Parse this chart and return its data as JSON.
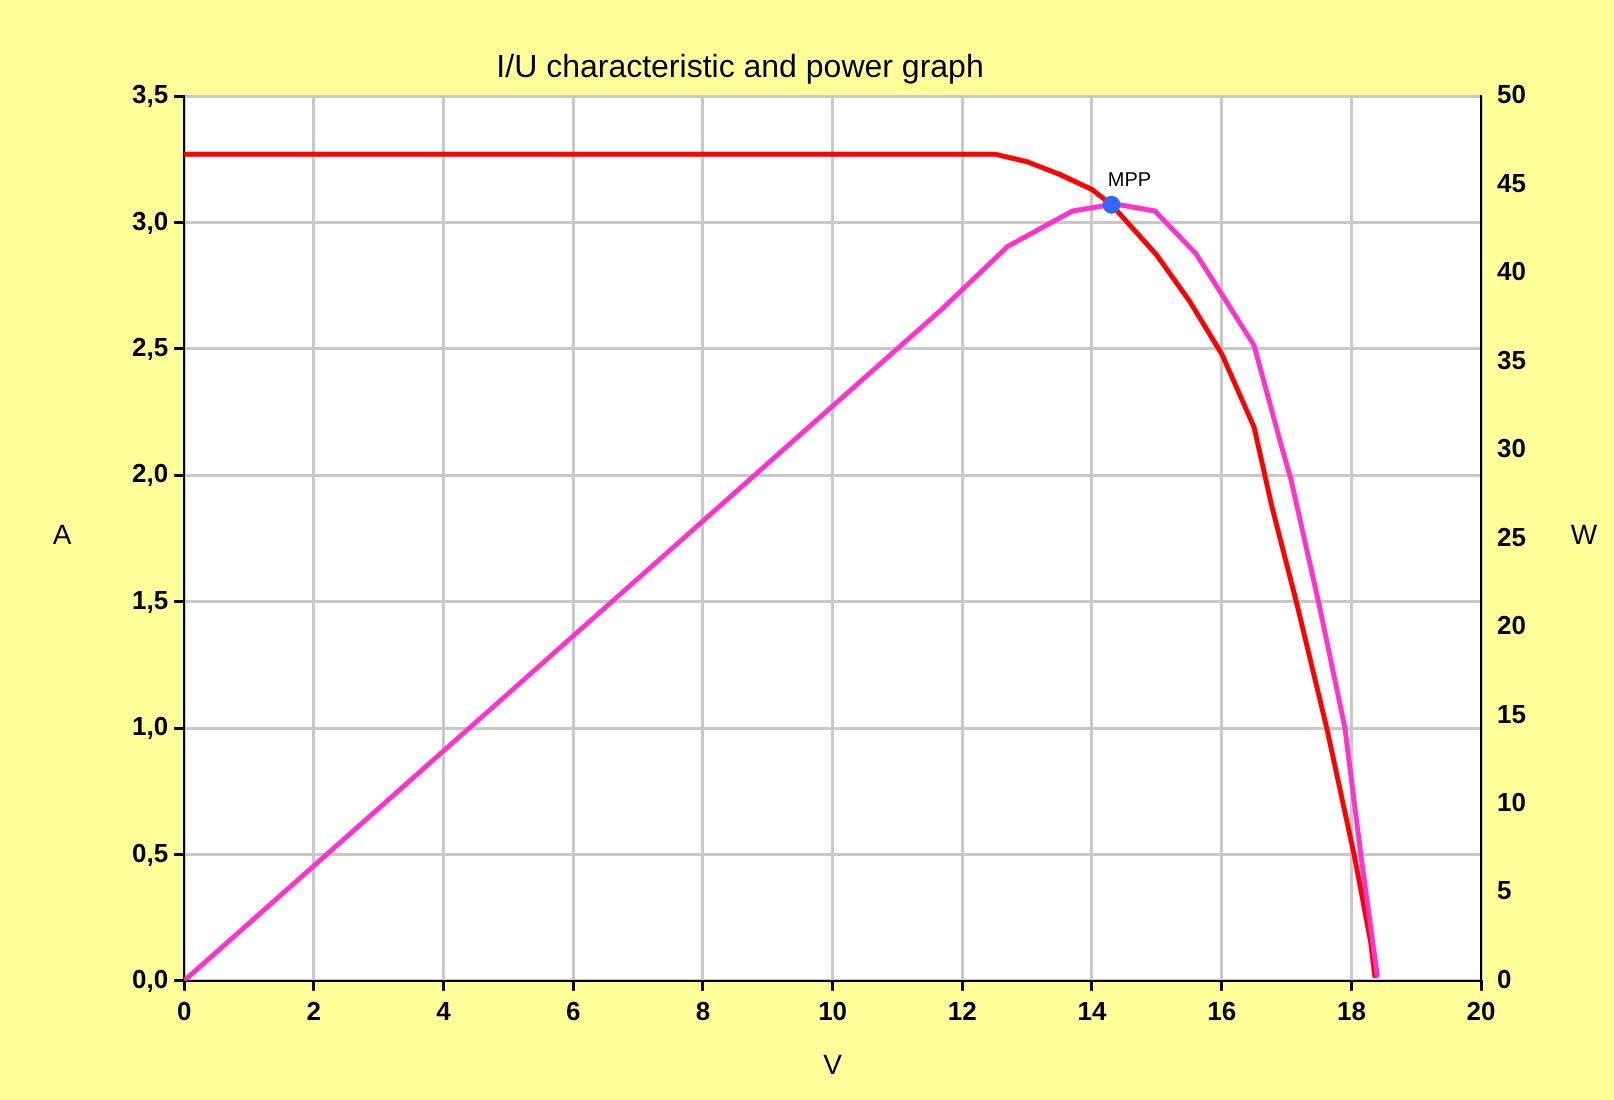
{
  "chart_data": {
    "type": "line",
    "title": "I/U characteristic and power graph",
    "xlabel": "V",
    "ylabel": "A",
    "y2label": "W",
    "xlim": [
      0,
      20
    ],
    "xticks": [
      0,
      2,
      4,
      6,
      8,
      10,
      12,
      14,
      16,
      18,
      20
    ],
    "ylim": [
      0,
      3.5
    ],
    "yticks": [
      {
        "value": 0,
        "label": "0,0"
      },
      {
        "value": 0.5,
        "label": "0,5"
      },
      {
        "value": 1,
        "label": "1,0"
      },
      {
        "value": 1.5,
        "label": "1,5"
      },
      {
        "value": 2,
        "label": "2,0"
      },
      {
        "value": 2.5,
        "label": "2,5"
      },
      {
        "value": 3,
        "label": "3,0"
      },
      {
        "value": 3.5,
        "label": "3,5"
      }
    ],
    "y2lim": [
      0,
      50
    ],
    "y2ticks": [
      0,
      5,
      10,
      15,
      20,
      25,
      30,
      35,
      40,
      45,
      50
    ],
    "grid": true,
    "marker": "none",
    "line_style": "solid",
    "series": [
      {
        "color": "#ff0000",
        "x": [
          0,
          12.5,
          13,
          13.5,
          14,
          14.3,
          15,
          15.5,
          16,
          16.5,
          16.77,
          17.16,
          17.62,
          18.05,
          18.3,
          18.36
        ],
        "values": [
          3.27,
          3.27,
          3.24,
          3.19,
          3.13,
          3.07,
          2.87,
          2.69,
          2.48,
          2.19,
          1.88,
          1.49,
          1.0,
          0.49,
          0.15,
          0.02
        ]
      },
      {
        "type": "line",
        "color": "#ff33cc",
        "axis": "y2",
        "x": [
          0,
          11.67,
          12.7,
          13.7,
          14.35,
          14.97,
          15.6,
          16.0,
          16.5,
          16.9,
          17.07,
          17.5,
          17.9,
          18.15,
          18.4
        ],
        "values": [
          0,
          37.9,
          41.5,
          43.5,
          43.9,
          43.5,
          41.1,
          38.8,
          35.9,
          30.5,
          28.3,
          21.3,
          14.3,
          7.0,
          0.3
        ]
      },
      {
        "type": "scatter",
        "color": "#3366ff",
        "marker": "circle",
        "x": [
          14.3
        ],
        "values": [
          3.07
        ]
      }
    ],
    "annotations": [
      {
        "text": "MPP",
        "x": 14.3,
        "y": 3.07
      }
    ]
  }
}
